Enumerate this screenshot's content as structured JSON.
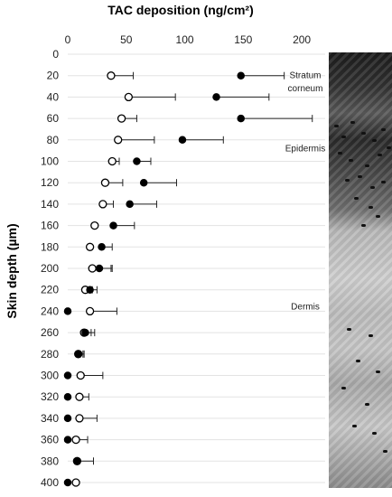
{
  "chart_data": {
    "type": "scatter",
    "title": "TAC deposition (ng/cm²)",
    "ylabel": "Skin depth (µm)",
    "xlim": [
      0,
      220
    ],
    "ylim": [
      0,
      400
    ],
    "x_ticks": [
      0,
      50,
      100,
      150,
      200
    ],
    "y_ticks": [
      0,
      20,
      40,
      60,
      80,
      100,
      120,
      140,
      160,
      180,
      200,
      220,
      240,
      260,
      280,
      300,
      320,
      340,
      360,
      380,
      400
    ],
    "x_axis_position": "top",
    "y_axis_inverted": true,
    "grid": "horizontal",
    "legend": "none",
    "series": [
      {
        "marker": "open-circle",
        "color": "#000000",
        "y": [
          20,
          40,
          60,
          80,
          100,
          120,
          140,
          160,
          180,
          200,
          220,
          240,
          260,
          280,
          300,
          320,
          340,
          360,
          380,
          400
        ],
        "x": [
          37,
          52,
          46,
          43,
          38,
          32,
          30,
          23,
          19,
          21,
          15,
          19,
          14,
          9,
          11,
          10,
          10,
          7,
          8,
          7
        ],
        "err_plus": [
          19,
          40,
          13,
          31,
          6,
          15,
          9,
          0,
          0,
          16,
          6,
          23,
          9,
          4,
          19,
          8,
          15,
          10,
          14,
          0
        ]
      },
      {
        "marker": "filled-circle",
        "color": "#000000",
        "y": [
          20,
          40,
          60,
          80,
          100,
          120,
          140,
          160,
          180,
          200,
          220,
          240,
          260,
          280,
          300,
          320,
          340,
          360,
          380,
          400
        ],
        "x": [
          148,
          127,
          148,
          98,
          59,
          65,
          53,
          39,
          29,
          27,
          19,
          0,
          15,
          9,
          0,
          0,
          0,
          0,
          8,
          0
        ],
        "err_plus": [
          37,
          45,
          61,
          35,
          12,
          28,
          23,
          18,
          9,
          11,
          6,
          0,
          5,
          5,
          0,
          0,
          0,
          0,
          0,
          0
        ]
      }
    ],
    "annotations": [
      {
        "depth": 20,
        "text": "Stratum"
      },
      {
        "depth": 32,
        "text": "corneum"
      },
      {
        "depth": 88,
        "text": "Epidermis"
      },
      {
        "depth": 236,
        "text": "Dermis"
      }
    ]
  },
  "histology": {
    "description_icon": "skin-histology-image"
  }
}
